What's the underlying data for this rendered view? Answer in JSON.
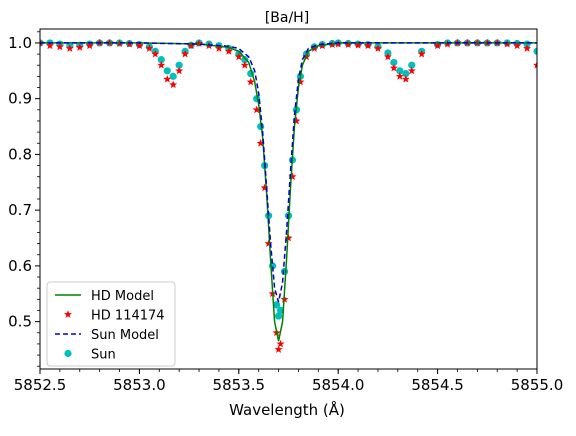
{
  "chart_data": {
    "type": "line",
    "title": "[Ba/H]",
    "xlabel": "Wavelength (Å)",
    "ylabel": "",
    "xlim": [
      5852.5,
      5855.0
    ],
    "ylim": [
      0.415,
      1.025
    ],
    "xticks": [
      5852.5,
      5853.0,
      5853.5,
      5854.0,
      5854.5,
      5855.0
    ],
    "xtick_labels": [
      "5852.5",
      "5853.0",
      "5853.5",
      "5854.0",
      "5854.5",
      "5855.0"
    ],
    "yticks": [
      0.5,
      0.6,
      0.7,
      0.8,
      0.9,
      1.0
    ],
    "ytick_labels": [
      "0.5",
      "0.6",
      "0.7",
      "0.8",
      "0.9",
      "1.0"
    ],
    "legend_position": "lower-left",
    "series": [
      {
        "name": "HD Model",
        "style": "solid-line",
        "color": "#008000",
        "x": [
          5852.5,
          5853.0,
          5853.3,
          5853.45,
          5853.5,
          5853.55,
          5853.58,
          5853.6,
          5853.62,
          5853.64,
          5853.66,
          5853.68,
          5853.7,
          5853.72,
          5853.74,
          5853.76,
          5853.78,
          5853.8,
          5853.82,
          5853.85,
          5853.9,
          5854.0,
          5854.5,
          5855.0
        ],
        "y": [
          1.0,
          1.0,
          0.998,
          0.992,
          0.985,
          0.965,
          0.93,
          0.89,
          0.83,
          0.73,
          0.61,
          0.5,
          0.465,
          0.5,
          0.61,
          0.74,
          0.85,
          0.92,
          0.96,
          0.985,
          0.995,
          1.0,
          1.0,
          1.0
        ]
      },
      {
        "name": "HD 114174",
        "style": "star-markers",
        "color": "#ff0000",
        "x": [
          5852.5,
          5852.55,
          5852.6,
          5852.65,
          5852.7,
          5852.75,
          5852.8,
          5852.85,
          5852.9,
          5852.95,
          5853.0,
          5853.05,
          5853.08,
          5853.11,
          5853.14,
          5853.17,
          5853.2,
          5853.23,
          5853.26,
          5853.3,
          5853.35,
          5853.4,
          5853.45,
          5853.5,
          5853.53,
          5853.56,
          5853.59,
          5853.61,
          5853.63,
          5853.65,
          5853.67,
          5853.69,
          5853.7,
          5853.71,
          5853.73,
          5853.75,
          5853.77,
          5853.79,
          5853.81,
          5853.84,
          5853.88,
          5853.92,
          5853.97,
          5854.0,
          5854.05,
          5854.1,
          5854.15,
          5854.2,
          5854.25,
          5854.28,
          5854.31,
          5854.34,
          5854.37,
          5854.42,
          5854.5,
          5854.55,
          5854.6,
          5854.65,
          5854.7,
          5854.75,
          5854.8,
          5854.85,
          5854.9,
          5854.95,
          5855.0
        ],
        "y": [
          1.0,
          0.995,
          0.993,
          0.99,
          0.992,
          0.995,
          1.0,
          1.0,
          0.999,
          0.998,
          0.995,
          0.99,
          0.98,
          0.96,
          0.935,
          0.925,
          0.95,
          0.98,
          0.995,
          0.999,
          0.995,
          0.99,
          0.985,
          0.975,
          0.96,
          0.93,
          0.88,
          0.82,
          0.74,
          0.64,
          0.55,
          0.48,
          0.45,
          0.46,
          0.54,
          0.65,
          0.76,
          0.86,
          0.93,
          0.975,
          0.99,
          0.995,
          0.997,
          0.998,
          0.997,
          0.996,
          0.995,
          0.99,
          0.975,
          0.955,
          0.94,
          0.935,
          0.95,
          0.98,
          0.995,
          0.998,
          1.0,
          1.0,
          1.0,
          1.0,
          1.0,
          0.998,
          0.995,
          0.99,
          0.96
        ]
      },
      {
        "name": "Sun Model",
        "style": "dashed-line",
        "color": "#0000cc",
        "x": [
          5852.5,
          5853.0,
          5853.3,
          5853.45,
          5853.5,
          5853.55,
          5853.58,
          5853.6,
          5853.62,
          5853.64,
          5853.66,
          5853.68,
          5853.7,
          5853.72,
          5853.74,
          5853.76,
          5853.78,
          5853.8,
          5853.82,
          5853.85,
          5853.9,
          5854.0,
          5854.5,
          5855.0
        ],
        "y": [
          1.0,
          1.0,
          0.998,
          0.994,
          0.99,
          0.975,
          0.95,
          0.91,
          0.84,
          0.74,
          0.64,
          0.56,
          0.535,
          0.57,
          0.66,
          0.77,
          0.87,
          0.935,
          0.97,
          0.99,
          0.997,
          1.0,
          1.0,
          1.0
        ]
      },
      {
        "name": "Sun",
        "style": "circle-markers",
        "color": "#00bfbf",
        "x": [
          5852.5,
          5852.55,
          5852.6,
          5852.65,
          5852.7,
          5852.75,
          5852.8,
          5852.85,
          5852.9,
          5852.95,
          5853.0,
          5853.05,
          5853.08,
          5853.11,
          5853.14,
          5853.17,
          5853.2,
          5853.23,
          5853.26,
          5853.3,
          5853.35,
          5853.4,
          5853.45,
          5853.5,
          5853.53,
          5853.56,
          5853.59,
          5853.61,
          5853.63,
          5853.65,
          5853.67,
          5853.69,
          5853.7,
          5853.71,
          5853.73,
          5853.75,
          5853.77,
          5853.79,
          5853.81,
          5853.84,
          5853.88,
          5853.92,
          5853.97,
          5854.0,
          5854.05,
          5854.1,
          5854.15,
          5854.2,
          5854.25,
          5854.28,
          5854.31,
          5854.34,
          5854.37,
          5854.42,
          5854.5,
          5854.55,
          5854.6,
          5854.65,
          5854.7,
          5854.75,
          5854.8,
          5854.85,
          5854.9,
          5854.95,
          5855.0
        ],
        "y": [
          1.0,
          1.0,
          0.998,
          0.995,
          0.996,
          0.998,
          1.0,
          1.0,
          1.0,
          0.999,
          0.997,
          0.993,
          0.985,
          0.97,
          0.95,
          0.94,
          0.96,
          0.985,
          0.996,
          1.0,
          0.998,
          0.995,
          0.99,
          0.98,
          0.97,
          0.945,
          0.9,
          0.85,
          0.78,
          0.69,
          0.6,
          0.53,
          0.51,
          0.52,
          0.59,
          0.69,
          0.79,
          0.88,
          0.94,
          0.98,
          0.993,
          0.997,
          0.999,
          1.0,
          0.999,
          0.998,
          0.997,
          0.993,
          0.982,
          0.965,
          0.95,
          0.945,
          0.96,
          0.985,
          0.997,
          1.0,
          1.0,
          1.0,
          1.0,
          1.0,
          1.0,
          1.0,
          0.999,
          0.998,
          0.985
        ]
      }
    ]
  }
}
